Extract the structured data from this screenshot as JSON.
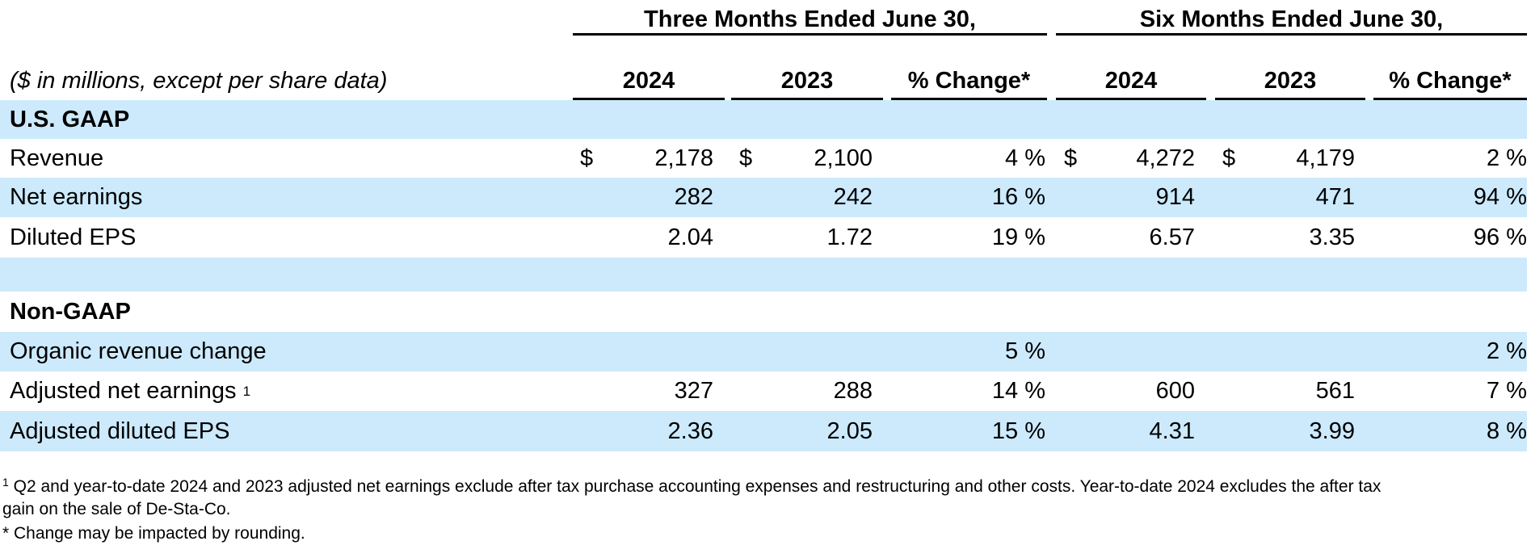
{
  "header": {
    "groups": [
      "Three Months Ended June 30,",
      "Six Months Ended June 30,"
    ],
    "unit_note": "($ in millions, except per share data)",
    "columns": [
      "2024",
      "2023",
      "% Change*",
      "2024",
      "2023",
      "% Change*"
    ]
  },
  "table": {
    "rows": [
      {
        "label": "U.S. GAAP",
        "section": true
      },
      {
        "label": "Revenue",
        "signs": [
          "$",
          "$",
          null,
          "$",
          "$",
          null
        ],
        "cells": [
          "2,178",
          "2,100",
          "4 %",
          "4,272",
          "4,179",
          "2 %"
        ]
      },
      {
        "label": "Net earnings",
        "cells": [
          "282",
          "242",
          "16 %",
          "914",
          "471",
          "94 %"
        ]
      },
      {
        "label": "Diluted EPS",
        "cells": [
          "2.04",
          "1.72",
          "19 %",
          "6.57",
          "3.35",
          "96 %"
        ]
      },
      {
        "label": "Non-GAAP",
        "section": true
      },
      {
        "label": "Organic revenue change",
        "cells": [
          null,
          null,
          "5 %",
          null,
          null,
          "2 %"
        ]
      },
      {
        "label": "Adjusted net earnings",
        "note": "1",
        "cells": [
          "327",
          "288",
          "14 %",
          "600",
          "561",
          "7 %"
        ]
      },
      {
        "label": "Adjusted diluted EPS",
        "cells": [
          "2.36",
          "2.05",
          "15 %",
          "4.31",
          "3.99",
          "8 %"
        ]
      }
    ]
  },
  "footnotes": [
    {
      "marker": "1",
      "lines": [
        "Q2 and year-to-date 2024 and 2023 adjusted net earnings exclude after tax purchase accounting expenses and restructuring and other costs. Year-to-date 2024 excludes the after tax",
        "gain on the sale of De-Sta-Co."
      ]
    },
    {
      "lines": [
        "* Change may be impacted by rounding."
      ]
    }
  ]
}
